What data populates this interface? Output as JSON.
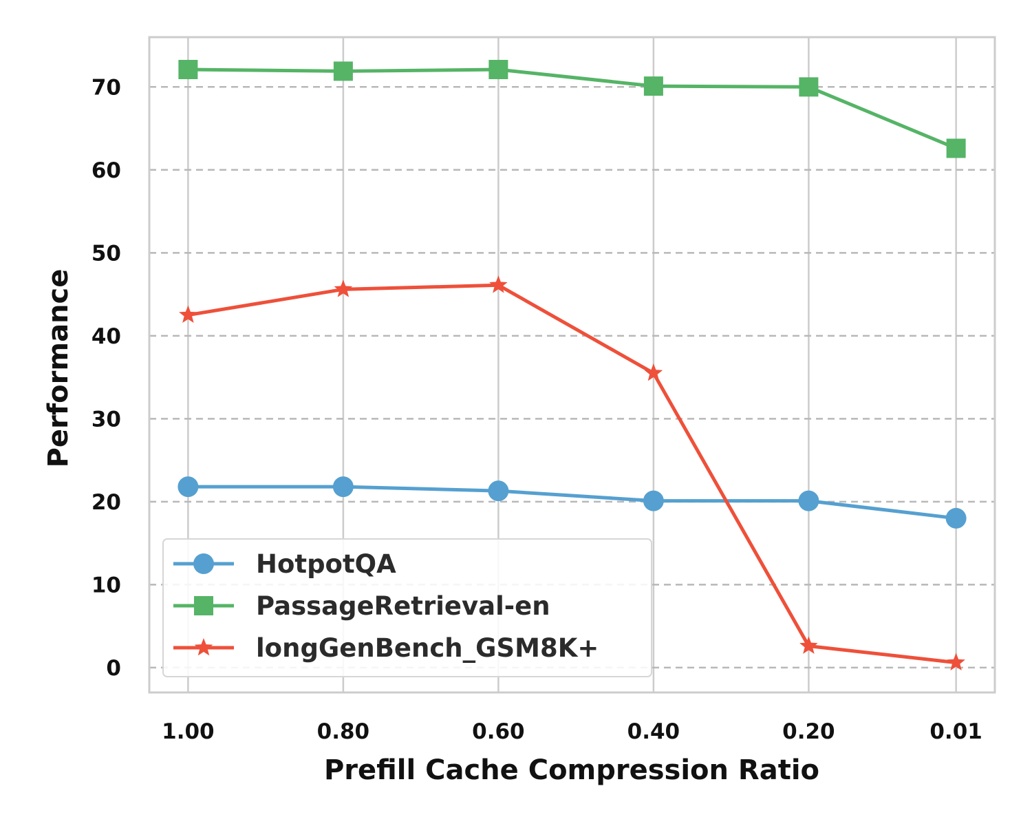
{
  "chart_data": {
    "type": "line",
    "title": "",
    "xlabel": "Prefill Cache Compression Ratio",
    "ylabel": "Performance",
    "categories": [
      "1.00",
      "0.80",
      "0.60",
      "0.40",
      "0.20",
      "0.01"
    ],
    "x": [
      1.0,
      0.8,
      0.6,
      0.4,
      0.2,
      0.01
    ],
    "xlim": [
      1.05,
      -0.04
    ],
    "ylim": [
      -3,
      76
    ],
    "yticks": [
      0,
      10,
      20,
      30,
      40,
      50,
      60,
      70
    ],
    "grid": {
      "x": true,
      "y": true,
      "y_style": "dashed"
    },
    "legend": {
      "position": "lower-left"
    },
    "series": [
      {
        "name": "HotpotQA",
        "marker": "circle",
        "color": "#55A0D0",
        "values": [
          21.8,
          21.8,
          21.3,
          20.1,
          20.1,
          18.0
        ]
      },
      {
        "name": "PassageRetrieval-en",
        "marker": "square",
        "color": "#55B466",
        "values": [
          72.1,
          71.9,
          72.1,
          70.1,
          70.0,
          62.6
        ]
      },
      {
        "name": "longGenBench_GSM8K+",
        "marker": "star",
        "color": "#EE503A",
        "values": [
          42.5,
          45.6,
          46.1,
          35.5,
          2.6,
          0.6
        ]
      }
    ]
  }
}
